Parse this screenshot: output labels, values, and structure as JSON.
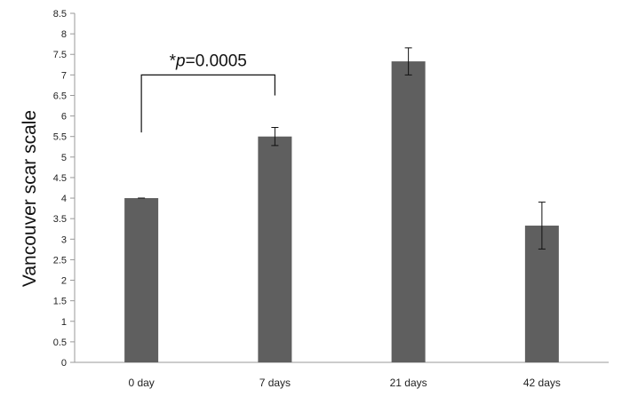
{
  "chart_data": {
    "type": "bar",
    "categories": [
      "0 day",
      "7 days",
      "21 days",
      "42 days"
    ],
    "values": [
      4.0,
      5.5,
      7.33,
      3.33
    ],
    "error": [
      0.0,
      0.22,
      0.33,
      0.57
    ],
    "ylabel": "Vancouver scar scale",
    "ylim": [
      0,
      8.5
    ],
    "ytick_step": 0.5,
    "yticks": [
      "0",
      "0.5",
      "1",
      "1.5",
      "2",
      "2.5",
      "3",
      "3.5",
      "4",
      "4.5",
      "5",
      "5.5",
      "6",
      "6.5",
      "7",
      "7.5",
      "8",
      "8.5"
    ],
    "grid": false,
    "bar_color": "#5f5f5f",
    "annotation": {
      "star": "*",
      "p_symbol": "p",
      "p_value": "=0.0005",
      "from_category": "0 day",
      "to_category": "7 days"
    }
  }
}
